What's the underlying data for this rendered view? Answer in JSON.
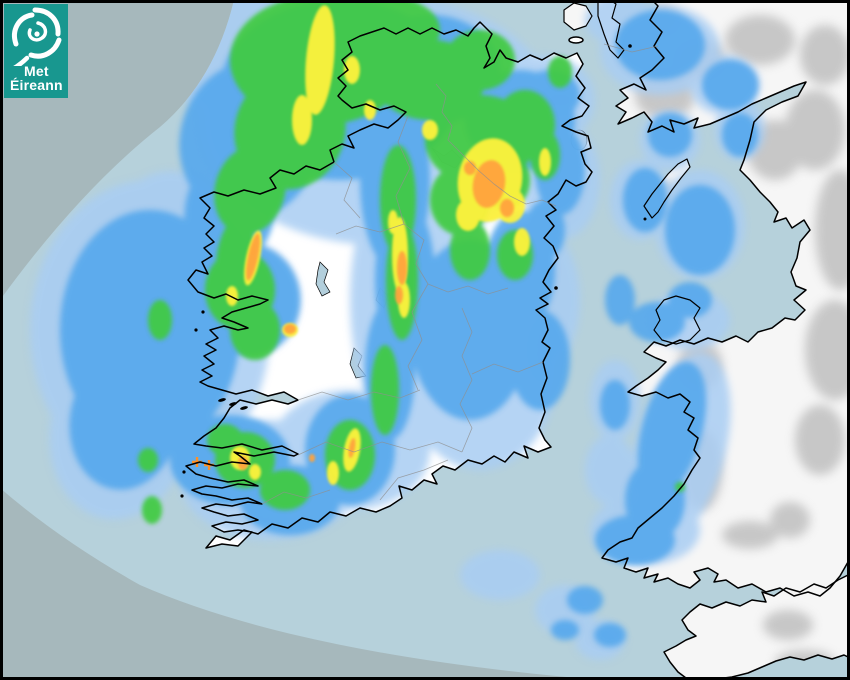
{
  "logo": {
    "line1": "Met",
    "line2": "Éireann",
    "brand_color": "#18978f",
    "icon": "cyclone-swirl-icon"
  },
  "map": {
    "colors": {
      "sea_outside_radar_range": "#a6b8bc",
      "sea_inside_radar_range": "#b6d1db",
      "land_ireland": "#ffffff",
      "land_britain": "#f6f6f6",
      "coastline": "#000000",
      "county_border": "#8f8f8f",
      "lake_fill": "#b3cfdc",
      "frame_border": "#000000"
    },
    "terrain_britain": {
      "color": "#bcbcbc",
      "opacity": 0.8,
      "cells": [
        [
          665,
          95,
          30,
          25,
          0
        ],
        [
          700,
          60,
          25,
          20,
          0
        ],
        [
          775,
          150,
          28,
          30,
          0
        ],
        [
          815,
          130,
          30,
          40,
          0
        ],
        [
          840,
          230,
          25,
          60,
          0
        ],
        [
          835,
          350,
          30,
          50,
          0
        ],
        [
          700,
          365,
          22,
          25,
          0
        ],
        [
          702,
          470,
          20,
          40,
          0
        ],
        [
          750,
          535,
          28,
          14,
          0
        ],
        [
          788,
          625,
          25,
          15,
          0
        ],
        [
          805,
          662,
          30,
          12,
          0
        ],
        [
          660,
          20,
          20,
          15,
          0
        ],
        [
          760,
          40,
          35,
          25,
          0
        ],
        [
          825,
          55,
          25,
          30,
          0
        ],
        [
          668,
          195,
          9,
          12,
          0
        ],
        [
          820,
          440,
          25,
          35,
          0
        ],
        [
          790,
          520,
          20,
          18,
          0
        ]
      ]
    },
    "terrain_ireland": {
      "color": "#dedede",
      "opacity": 0.8,
      "cells": [
        [
          545,
          350,
          14,
          30,
          0
        ],
        [
          420,
          60,
          30,
          18,
          0
        ],
        [
          370,
          80,
          20,
          12,
          0
        ],
        [
          560,
          100,
          18,
          12,
          0
        ],
        [
          310,
          140,
          25,
          15,
          0
        ],
        [
          450,
          500,
          25,
          10,
          0
        ],
        [
          260,
          520,
          25,
          12,
          0
        ]
      ]
    }
  },
  "radar": {
    "levels": [
      {
        "id": "light-rain",
        "color": "#a9cdf3",
        "opacity": 0.85,
        "cells": [
          [
            150,
            330,
            120,
            150,
            0
          ],
          [
            120,
            430,
            70,
            90,
            10
          ],
          [
            165,
            240,
            60,
            70,
            20
          ],
          [
            380,
            120,
            180,
            125,
            0
          ],
          [
            260,
            60,
            90,
            70,
            0
          ],
          [
            480,
            120,
            90,
            80,
            0
          ],
          [
            545,
            100,
            50,
            45,
            0
          ],
          [
            420,
            300,
            70,
            150,
            0
          ],
          [
            480,
            360,
            80,
            110,
            0
          ],
          [
            530,
            300,
            50,
            80,
            0
          ],
          [
            350,
            450,
            80,
            60,
            0
          ],
          [
            270,
            480,
            90,
            60,
            0
          ],
          [
            240,
            300,
            60,
            60,
            0
          ],
          [
            560,
            180,
            40,
            60,
            0
          ],
          [
            660,
            50,
            60,
            45,
            0
          ],
          [
            725,
            85,
            35,
            30,
            0
          ],
          [
            700,
            225,
            45,
            55,
            0
          ],
          [
            640,
            200,
            30,
            40,
            0
          ],
          [
            670,
            140,
            30,
            30,
            0
          ],
          [
            690,
            320,
            40,
            30,
            0
          ],
          [
            680,
            450,
            45,
            100,
            15
          ],
          [
            645,
            530,
            55,
            35,
            0
          ],
          [
            610,
            470,
            25,
            35,
            0
          ],
          [
            565,
            610,
            30,
            25,
            0
          ],
          [
            600,
            640,
            25,
            20,
            0
          ],
          [
            740,
            130,
            25,
            30,
            0
          ],
          [
            620,
            20,
            35,
            25,
            0
          ],
          [
            615,
            400,
            25,
            40,
            0
          ],
          [
            500,
            575,
            40,
            25,
            0
          ]
        ]
      },
      {
        "id": "moderate-rain",
        "color": "#55a7ec",
        "opacity": 0.9,
        "cells": [
          [
            150,
            330,
            90,
            120,
            0
          ],
          [
            125,
            420,
            55,
            70,
            10
          ],
          [
            340,
            90,
            120,
            90,
            0
          ],
          [
            250,
            140,
            70,
            80,
            15
          ],
          [
            230,
            210,
            45,
            60,
            10
          ],
          [
            430,
            70,
            70,
            55,
            0
          ],
          [
            520,
            120,
            55,
            50,
            0
          ],
          [
            550,
            95,
            30,
            25,
            0
          ],
          [
            395,
            180,
            35,
            90,
            0
          ],
          [
            405,
            280,
            30,
            80,
            0
          ],
          [
            390,
            370,
            25,
            70,
            0
          ],
          [
            350,
            450,
            45,
            55,
            0
          ],
          [
            470,
            330,
            60,
            90,
            0
          ],
          [
            520,
            270,
            35,
            60,
            0
          ],
          [
            540,
            360,
            30,
            50,
            0
          ],
          [
            250,
            300,
            50,
            55,
            0
          ],
          [
            230,
            460,
            60,
            45,
            0
          ],
          [
            290,
            500,
            50,
            35,
            0
          ],
          [
            560,
            170,
            25,
            45,
            0
          ],
          [
            545,
            230,
            20,
            30,
            0
          ],
          [
            660,
            45,
            45,
            35,
            0
          ],
          [
            730,
            85,
            28,
            25,
            0
          ],
          [
            700,
            230,
            35,
            45,
            0
          ],
          [
            645,
            200,
            22,
            32,
            0
          ],
          [
            670,
            135,
            22,
            22,
            0
          ],
          [
            657,
            322,
            28,
            20,
            0
          ],
          [
            690,
            300,
            22,
            18,
            0
          ],
          [
            672,
            430,
            30,
            70,
            15
          ],
          [
            655,
            500,
            30,
            40,
            0
          ],
          [
            635,
            540,
            40,
            25,
            0
          ],
          [
            585,
            600,
            18,
            14,
            0
          ],
          [
            610,
            635,
            16,
            12,
            0
          ],
          [
            565,
            630,
            14,
            10,
            0
          ],
          [
            740,
            135,
            18,
            22,
            0
          ],
          [
            620,
            300,
            15,
            25,
            0
          ],
          [
            615,
            405,
            15,
            25,
            0
          ]
        ]
      },
      {
        "id": "heavy-rain",
        "color": "#3fca41",
        "opacity": 0.92,
        "cells": [
          [
            320,
            60,
            90,
            65,
            0
          ],
          [
            290,
            130,
            55,
            60,
            20
          ],
          [
            250,
            190,
            35,
            45,
            15
          ],
          [
            380,
            30,
            60,
            35,
            0
          ],
          [
            480,
            60,
            35,
            30,
            0
          ],
          [
            430,
            80,
            55,
            40,
            0
          ],
          [
            480,
            140,
            55,
            45,
            0
          ],
          [
            525,
            125,
            30,
            35,
            0
          ],
          [
            398,
            200,
            18,
            55,
            0
          ],
          [
            402,
            280,
            16,
            60,
            0
          ],
          [
            385,
            390,
            14,
            45,
            0
          ],
          [
            350,
            455,
            25,
            35,
            0
          ],
          [
            240,
            290,
            35,
            40,
            0
          ],
          [
            255,
            330,
            25,
            30,
            0
          ],
          [
            235,
            255,
            18,
            40,
            10
          ],
          [
            245,
            460,
            30,
            28,
            0
          ],
          [
            285,
            490,
            25,
            20,
            0
          ],
          [
            225,
            440,
            18,
            16,
            0
          ],
          [
            460,
            200,
            30,
            35,
            0
          ],
          [
            505,
            180,
            25,
            30,
            0
          ],
          [
            515,
            255,
            18,
            25,
            0
          ],
          [
            545,
            155,
            15,
            25,
            0
          ],
          [
            470,
            250,
            20,
            30,
            0
          ],
          [
            152,
            510,
            10,
            14,
            0
          ],
          [
            160,
            320,
            12,
            20,
            0
          ],
          [
            148,
            460,
            10,
            12,
            0
          ],
          [
            680,
            487,
            5,
            5,
            0
          ],
          [
            560,
            72,
            12,
            16,
            0
          ]
        ]
      },
      {
        "id": "very-heavy-rain",
        "color": "#fdf13b",
        "opacity": 0.95,
        "cells": [
          [
            490,
            180,
            32,
            42,
            10
          ],
          [
            510,
            205,
            15,
            18,
            0
          ],
          [
            468,
            215,
            12,
            16,
            0
          ],
          [
            320,
            60,
            14,
            55,
            5
          ],
          [
            302,
            120,
            10,
            25,
            0
          ],
          [
            352,
            70,
            8,
            14,
            0
          ],
          [
            400,
            255,
            8,
            38,
            0
          ],
          [
            404,
            300,
            6,
            18,
            0
          ],
          [
            393,
            222,
            5,
            12,
            0
          ],
          [
            352,
            450,
            8,
            22,
            10
          ],
          [
            333,
            473,
            6,
            12,
            0
          ],
          [
            253,
            258,
            7,
            28,
            12
          ],
          [
            290,
            330,
            8,
            7,
            0
          ],
          [
            240,
            458,
            10,
            12,
            0
          ],
          [
            255,
            472,
            6,
            8,
            0
          ],
          [
            232,
            296,
            6,
            10,
            0
          ],
          [
            545,
            162,
            6,
            14,
            0
          ],
          [
            522,
            242,
            8,
            14,
            0
          ],
          [
            430,
            130,
            8,
            10,
            0
          ],
          [
            370,
            110,
            6,
            10,
            0
          ]
        ]
      },
      {
        "id": "intense-rain",
        "color": "#ffa33c",
        "opacity": 0.95,
        "cells": [
          [
            489,
            184,
            16,
            24,
            10
          ],
          [
            507,
            208,
            7,
            9,
            0
          ],
          [
            470,
            168,
            6,
            7,
            0
          ],
          [
            402,
            268,
            5,
            17,
            0
          ],
          [
            399,
            295,
            4,
            9,
            0
          ],
          [
            253,
            257,
            5,
            24,
            12
          ],
          [
            290,
            329,
            6,
            5,
            0
          ],
          [
            243,
            463,
            5,
            7,
            0
          ],
          [
            352,
            448,
            3,
            10,
            10
          ],
          [
            312,
            458,
            3,
            4,
            0
          ]
        ]
      }
    ],
    "storm_markers": {
      "shape": "plus",
      "color": "#ff9125",
      "positions": [
        [
          197,
          462
        ],
        [
          209,
          465
        ]
      ]
    }
  }
}
